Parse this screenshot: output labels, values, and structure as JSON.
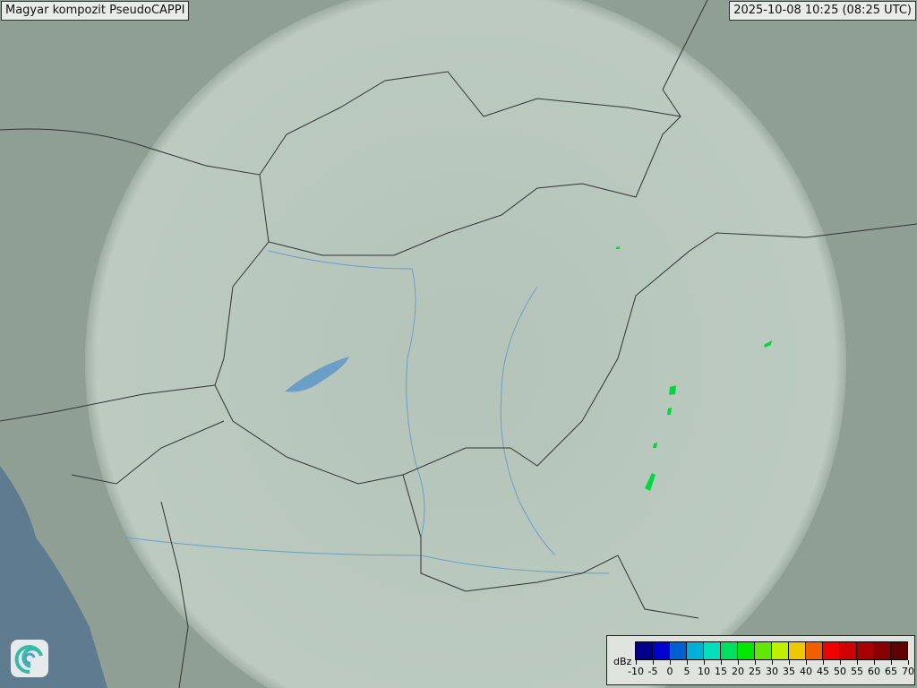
{
  "title": "Magyar kompozit  PseudoCAPPI",
  "timestamp": "2025-10-08 10:25 (08:25 UTC)",
  "legend": {
    "unit": "dBz",
    "ticks": [
      "-10",
      "-5",
      "0",
      "5",
      "10",
      "15",
      "20",
      "25",
      "30",
      "35",
      "40",
      "45",
      "50",
      "55",
      "60",
      "65",
      "70"
    ],
    "colors": [
      "#00008c",
      "#0000d0",
      "#0060d0",
      "#00b0d8",
      "#00e0b8",
      "#00e060",
      "#00e800",
      "#60e800",
      "#c0f000",
      "#f0c800",
      "#f06000",
      "#f00000",
      "#d00000",
      "#a80000",
      "#880000",
      "#600000"
    ]
  },
  "logo_icon": "swirl-logo-icon",
  "colors": {
    "land": "#8f9e92",
    "radar_coverage": "#c4d2c8",
    "sea": "#5f7b90",
    "border": "#333333",
    "river": "#6b9fc8",
    "echo": "#00d840"
  }
}
